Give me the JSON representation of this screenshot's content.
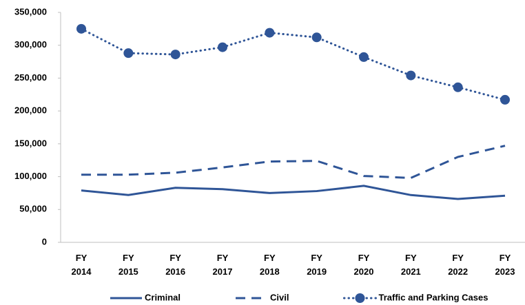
{
  "chart_data": {
    "type": "line",
    "categories": [
      "FY 2014",
      "FY 2015",
      "FY 2016",
      "FY 2017",
      "FY 2018",
      "FY 2019",
      "FY 2020",
      "FY 2021",
      "FY 2022",
      "FY 2023"
    ],
    "series": [
      {
        "name": "Criminal",
        "color": "#2f5597",
        "style": "solid",
        "values": [
          79000,
          72000,
          83000,
          81000,
          75000,
          78000,
          86000,
          72000,
          66000,
          71000
        ]
      },
      {
        "name": "Civil",
        "color": "#2f5597",
        "style": "dashed",
        "values": [
          103000,
          103000,
          106000,
          114000,
          123000,
          124000,
          101000,
          98000,
          130000,
          147000
        ]
      },
      {
        "name": "Traffic and Parking Cases",
        "color": "#2f5597",
        "style": "dotted",
        "marker": "circle",
        "values": [
          325000,
          288000,
          286000,
          297000,
          319000,
          312000,
          282000,
          254000,
          236000,
          217000
        ]
      }
    ],
    "ylim": [
      0,
      350000
    ],
    "yticks": [
      0,
      {
        "value": 50000,
        "label": "50,000"
      },
      {
        "value": 100000,
        "label": "100,000"
      },
      {
        "value": 150000,
        "label": "150,000"
      },
      {
        "value": 200000,
        "label": "200,000"
      },
      {
        "value": 250000,
        "label": "250,000"
      },
      {
        "value": 300000,
        "label": "300,000"
      },
      {
        "value": 350000,
        "label": "350,000"
      }
    ],
    "grid": false,
    "legend": "bottom"
  }
}
